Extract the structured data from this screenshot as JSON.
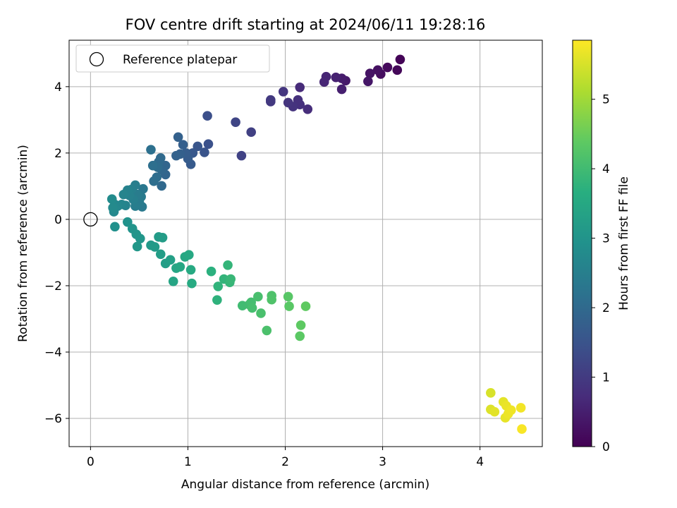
{
  "chart_data": {
    "type": "scatter",
    "title": "FOV centre drift starting at 2024/06/11 19:28:16",
    "xlabel": "Angular distance from reference (arcmin)",
    "ylabel": "Rotation from reference (arcmin)",
    "xlim": [
      -0.22,
      4.64
    ],
    "ylim": [
      -6.85,
      5.4
    ],
    "xticks": [
      0,
      1,
      2,
      3,
      4
    ],
    "yticks": [
      -6,
      -4,
      -2,
      0,
      2,
      4
    ],
    "grid": true,
    "legend": {
      "position": "top-left",
      "entries": [
        "Reference platepar"
      ]
    },
    "reference_point": {
      "x": 0,
      "y": 0
    },
    "colorbar": {
      "label": "Hours from first FF file",
      "range": [
        0,
        5.85
      ],
      "ticks": [
        0,
        1,
        2,
        3,
        4,
        5
      ],
      "colormap": "viridis"
    },
    "points": [
      {
        "x": 3.18,
        "y": 4.82,
        "c": 0.05
      },
      {
        "x": 3.15,
        "y": 4.5,
        "c": 0.1
      },
      {
        "x": 3.05,
        "y": 4.58,
        "c": 0.15
      },
      {
        "x": 2.98,
        "y": 4.38,
        "c": 0.2
      },
      {
        "x": 2.95,
        "y": 4.5,
        "c": 0.25
      },
      {
        "x": 2.87,
        "y": 4.4,
        "c": 0.3
      },
      {
        "x": 2.85,
        "y": 4.16,
        "c": 0.35
      },
      {
        "x": 2.62,
        "y": 4.18,
        "c": 0.4
      },
      {
        "x": 2.58,
        "y": 4.25,
        "c": 0.45
      },
      {
        "x": 2.58,
        "y": 3.92,
        "c": 0.5
      },
      {
        "x": 2.52,
        "y": 4.28,
        "c": 0.55
      },
      {
        "x": 2.42,
        "y": 4.3,
        "c": 0.6
      },
      {
        "x": 2.4,
        "y": 4.14,
        "c": 0.62
      },
      {
        "x": 2.15,
        "y": 3.98,
        "c": 0.7
      },
      {
        "x": 2.23,
        "y": 3.32,
        "c": 0.75
      },
      {
        "x": 2.15,
        "y": 3.46,
        "c": 0.8
      },
      {
        "x": 2.13,
        "y": 3.6,
        "c": 0.82
      },
      {
        "x": 2.08,
        "y": 3.4,
        "c": 0.85
      },
      {
        "x": 2.03,
        "y": 3.52,
        "c": 0.88
      },
      {
        "x": 1.98,
        "y": 3.85,
        "c": 0.9
      },
      {
        "x": 1.85,
        "y": 3.55,
        "c": 0.95
      },
      {
        "x": 1.85,
        "y": 3.6,
        "c": 0.97
      },
      {
        "x": 1.65,
        "y": 2.63,
        "c": 1.1
      },
      {
        "x": 1.55,
        "y": 1.92,
        "c": 1.15
      },
      {
        "x": 1.49,
        "y": 2.93,
        "c": 1.2
      },
      {
        "x": 1.2,
        "y": 3.12,
        "c": 1.4
      },
      {
        "x": 1.21,
        "y": 2.27,
        "c": 1.45
      },
      {
        "x": 1.17,
        "y": 2.02,
        "c": 1.5
      },
      {
        "x": 1.1,
        "y": 2.2,
        "c": 1.55
      },
      {
        "x": 1.05,
        "y": 2.0,
        "c": 1.6
      },
      {
        "x": 1.03,
        "y": 1.66,
        "c": 1.65
      },
      {
        "x": 1.0,
        "y": 1.83,
        "c": 1.7
      },
      {
        "x": 0.98,
        "y": 2.0,
        "c": 1.72
      },
      {
        "x": 0.95,
        "y": 2.25,
        "c": 1.75
      },
      {
        "x": 0.92,
        "y": 1.97,
        "c": 1.78
      },
      {
        "x": 0.9,
        "y": 2.48,
        "c": 1.8
      },
      {
        "x": 0.88,
        "y": 1.92,
        "c": 1.82
      },
      {
        "x": 0.77,
        "y": 1.35,
        "c": 1.9
      },
      {
        "x": 0.77,
        "y": 1.62,
        "c": 1.92
      },
      {
        "x": 0.73,
        "y": 1.5,
        "c": 1.95
      },
      {
        "x": 0.73,
        "y": 1.01,
        "c": 1.98
      },
      {
        "x": 0.72,
        "y": 1.85,
        "c": 2.0
      },
      {
        "x": 0.7,
        "y": 1.73,
        "c": 2.02
      },
      {
        "x": 0.69,
        "y": 1.57,
        "c": 2.05
      },
      {
        "x": 0.68,
        "y": 1.27,
        "c": 2.08
      },
      {
        "x": 0.65,
        "y": 1.15,
        "c": 2.1
      },
      {
        "x": 0.64,
        "y": 1.62,
        "c": 2.12
      },
      {
        "x": 0.62,
        "y": 2.1,
        "c": 2.15
      },
      {
        "x": 0.54,
        "y": 0.92,
        "c": 2.3
      },
      {
        "x": 0.53,
        "y": 0.38,
        "c": 2.35
      },
      {
        "x": 0.52,
        "y": 0.68,
        "c": 2.38
      },
      {
        "x": 0.5,
        "y": 0.52,
        "c": 2.4
      },
      {
        "x": 0.48,
        "y": 0.75,
        "c": 2.42
      },
      {
        "x": 0.46,
        "y": 0.4,
        "c": 2.45
      },
      {
        "x": 0.46,
        "y": 1.03,
        "c": 2.48
      },
      {
        "x": 0.44,
        "y": 0.6,
        "c": 2.5
      },
      {
        "x": 0.42,
        "y": 0.9,
        "c": 2.52
      },
      {
        "x": 0.4,
        "y": 0.72,
        "c": 2.55
      },
      {
        "x": 0.38,
        "y": 0.88,
        "c": 2.58
      },
      {
        "x": 0.36,
        "y": 0.42,
        "c": 2.6
      },
      {
        "x": 0.34,
        "y": 0.75,
        "c": 2.62
      },
      {
        "x": 0.32,
        "y": 0.45,
        "c": 2.65
      },
      {
        "x": 0.28,
        "y": 0.4,
        "c": 2.68
      },
      {
        "x": 0.25,
        "y": 0.45,
        "c": 2.7
      },
      {
        "x": 0.24,
        "y": 0.23,
        "c": 2.72
      },
      {
        "x": 0.23,
        "y": 0.35,
        "c": 2.75
      },
      {
        "x": 0.22,
        "y": 0.61,
        "c": 2.78
      },
      {
        "x": 0.25,
        "y": -0.22,
        "c": 2.9
      },
      {
        "x": 0.38,
        "y": -0.08,
        "c": 2.95
      },
      {
        "x": 0.43,
        "y": -0.28,
        "c": 3.0
      },
      {
        "x": 0.47,
        "y": -0.45,
        "c": 3.02
      },
      {
        "x": 0.51,
        "y": -0.58,
        "c": 3.05
      },
      {
        "x": 0.48,
        "y": -0.82,
        "c": 3.08
      },
      {
        "x": 0.62,
        "y": -0.78,
        "c": 3.12
      },
      {
        "x": 0.66,
        "y": -0.83,
        "c": 3.15
      },
      {
        "x": 0.7,
        "y": -0.53,
        "c": 3.18
      },
      {
        "x": 0.74,
        "y": -0.55,
        "c": 3.2
      },
      {
        "x": 0.72,
        "y": -1.05,
        "c": 3.22
      },
      {
        "x": 0.77,
        "y": -1.33,
        "c": 3.25
      },
      {
        "x": 0.82,
        "y": -1.22,
        "c": 3.28
      },
      {
        "x": 0.85,
        "y": -1.87,
        "c": 3.4
      },
      {
        "x": 0.88,
        "y": -1.47,
        "c": 3.42
      },
      {
        "x": 0.92,
        "y": -1.43,
        "c": 3.45
      },
      {
        "x": 0.97,
        "y": -1.13,
        "c": 3.48
      },
      {
        "x": 1.01,
        "y": -1.07,
        "c": 3.5
      },
      {
        "x": 1.03,
        "y": -1.52,
        "c": 3.52
      },
      {
        "x": 1.04,
        "y": -1.93,
        "c": 3.55
      },
      {
        "x": 1.24,
        "y": -1.57,
        "c": 3.7
      },
      {
        "x": 1.3,
        "y": -2.43,
        "c": 3.75
      },
      {
        "x": 1.31,
        "y": -2.02,
        "c": 3.78
      },
      {
        "x": 1.37,
        "y": -1.8,
        "c": 3.8
      },
      {
        "x": 1.41,
        "y": -1.38,
        "c": 3.82
      },
      {
        "x": 1.43,
        "y": -1.9,
        "c": 3.85
      },
      {
        "x": 1.44,
        "y": -1.8,
        "c": 3.88
      },
      {
        "x": 1.56,
        "y": -2.6,
        "c": 4.0
      },
      {
        "x": 1.63,
        "y": -2.57,
        "c": 4.02
      },
      {
        "x": 1.65,
        "y": -2.5,
        "c": 4.05
      },
      {
        "x": 1.66,
        "y": -2.67,
        "c": 4.08
      },
      {
        "x": 1.72,
        "y": -2.33,
        "c": 4.1
      },
      {
        "x": 1.75,
        "y": -2.83,
        "c": 4.12
      },
      {
        "x": 1.81,
        "y": -3.35,
        "c": 4.15
      },
      {
        "x": 1.86,
        "y": -2.3,
        "c": 4.18
      },
      {
        "x": 1.86,
        "y": -2.42,
        "c": 4.2
      },
      {
        "x": 2.03,
        "y": -2.33,
        "c": 4.3
      },
      {
        "x": 2.04,
        "y": -2.62,
        "c": 4.32
      },
      {
        "x": 2.15,
        "y": -3.52,
        "c": 4.35
      },
      {
        "x": 2.16,
        "y": -3.19,
        "c": 4.38
      },
      {
        "x": 2.21,
        "y": -2.62,
        "c": 4.4
      },
      {
        "x": 4.11,
        "y": -5.23,
        "c": 5.5
      },
      {
        "x": 4.11,
        "y": -5.73,
        "c": 5.55
      },
      {
        "x": 4.15,
        "y": -5.8,
        "c": 5.6
      },
      {
        "x": 4.24,
        "y": -5.5,
        "c": 5.62
      },
      {
        "x": 4.26,
        "y": -5.98,
        "c": 5.65
      },
      {
        "x": 4.27,
        "y": -5.62,
        "c": 5.68
      },
      {
        "x": 4.29,
        "y": -5.86,
        "c": 5.7
      },
      {
        "x": 4.32,
        "y": -5.75,
        "c": 5.72
      },
      {
        "x": 4.42,
        "y": -5.68,
        "c": 5.75
      },
      {
        "x": 4.43,
        "y": -6.32,
        "c": 5.8
      }
    ]
  }
}
